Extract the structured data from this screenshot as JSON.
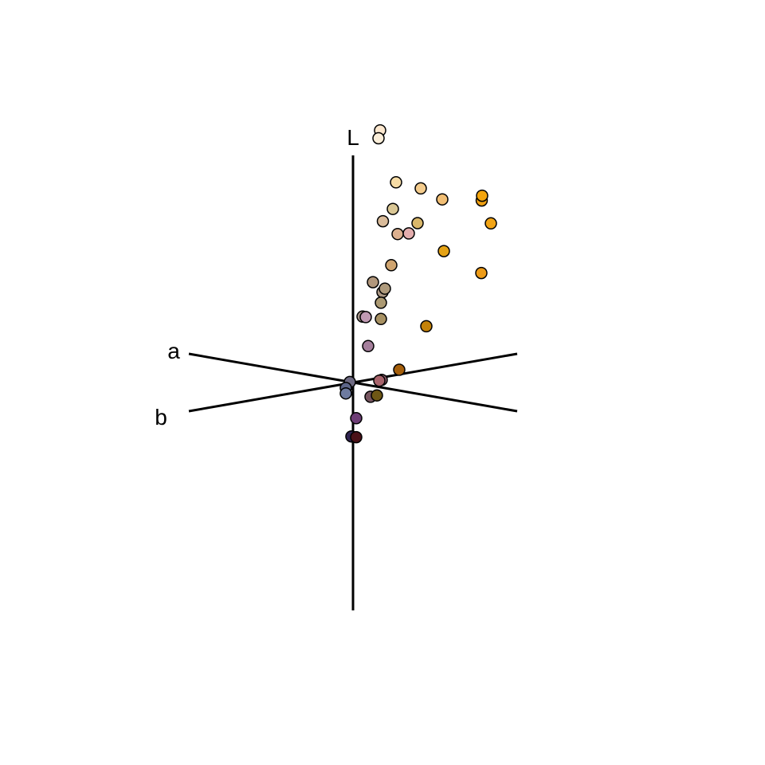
{
  "chart_data": {
    "type": "scatter",
    "projection": "3d-oblique",
    "axes": {
      "L": "L",
      "a": "a",
      "b": "b"
    },
    "grid": false,
    "legend": "none",
    "points": [
      {
        "L": 92,
        "a": 4,
        "b": 12,
        "color": "#fde8cf"
      },
      {
        "L": 89,
        "a": 2,
        "b": 12,
        "color": "#fbeed9"
      },
      {
        "L": 72,
        "a": 4,
        "b": 20,
        "color": "#f6dca6"
      },
      {
        "L": 69,
        "a": 10,
        "b": 30,
        "color": "#f4cc8d"
      },
      {
        "L": 62,
        "a": 0,
        "b": 20,
        "color": "#dac795"
      },
      {
        "L": 64,
        "a": 12,
        "b": 40,
        "color": "#f1be74"
      },
      {
        "L": 58,
        "a": 0,
        "b": 15,
        "color": "#d9bb9a"
      },
      {
        "L": 53,
        "a": 6,
        "b": 20,
        "color": "#dcb08f"
      },
      {
        "L": 53,
        "a": 10,
        "b": 24,
        "color": "#e3adad"
      },
      {
        "L": 56,
        "a": 6,
        "b": 30,
        "color": "#d9b76a"
      },
      {
        "L": 63,
        "a": 29,
        "b": 53,
        "color": "#ee9f11"
      },
      {
        "L": 65,
        "a": 32,
        "b": 52,
        "color": "#f4a50d"
      },
      {
        "L": 54,
        "a": 28,
        "b": 58,
        "color": "#f2a415"
      },
      {
        "L": 42,
        "a": 8,
        "b": 16,
        "color": "#cfa46f"
      },
      {
        "L": 45,
        "a": 14,
        "b": 40,
        "color": "#e5a316"
      },
      {
        "L": 36,
        "a": 26,
        "b": 54,
        "color": "#ed9b17"
      },
      {
        "L": 32,
        "a": 2,
        "b": 14,
        "color": "#ac9884"
      },
      {
        "L": 33,
        "a": 0,
        "b": 16,
        "color": "#ae9a7c"
      },
      {
        "L": 36,
        "a": 0,
        "b": 10,
        "color": "#b1977c"
      },
      {
        "L": 28,
        "a": 0,
        "b": 14,
        "color": "#ac9a73"
      },
      {
        "L": 24,
        "a": 2,
        "b": 4,
        "color": "#a7968b"
      },
      {
        "L": 22,
        "a": 0,
        "b": 14,
        "color": "#a79163"
      },
      {
        "L": 24,
        "a": 6,
        "b": 4,
        "color": "#c09ab3"
      },
      {
        "L": 13,
        "a": 4,
        "b": 6,
        "color": "#a57f9c"
      },
      {
        "L": 18,
        "a": 12,
        "b": 32,
        "color": "#c4820a"
      },
      {
        "L": 0,
        "a": 6,
        "b": 12,
        "color": "#8e5a6a"
      },
      {
        "L": 0,
        "a": 8,
        "b": 10,
        "color": "#a8646c"
      },
      {
        "L": 3,
        "a": 8,
        "b": 20,
        "color": "#a55f0b"
      },
      {
        "L": 0,
        "a": -4,
        "b": 0,
        "color": "#6e6a82"
      },
      {
        "L": -2,
        "a": -4,
        "b": -2,
        "color": "#5d6588"
      },
      {
        "L": -4,
        "a": -4,
        "b": -2,
        "color": "#6e7ba0"
      },
      {
        "L": -6,
        "a": 2,
        "b": 8,
        "color": "#775660"
      },
      {
        "L": -6,
        "a": 0,
        "b": 12,
        "color": "#6e5715"
      },
      {
        "L": -13,
        "a": 4,
        "b": 0,
        "color": "#6d3d75"
      },
      {
        "L": -20,
        "a": -2,
        "b": 0,
        "color": "#302451"
      },
      {
        "L": -20,
        "a": 4,
        "b": 0,
        "color": "#4b1118"
      }
    ]
  }
}
